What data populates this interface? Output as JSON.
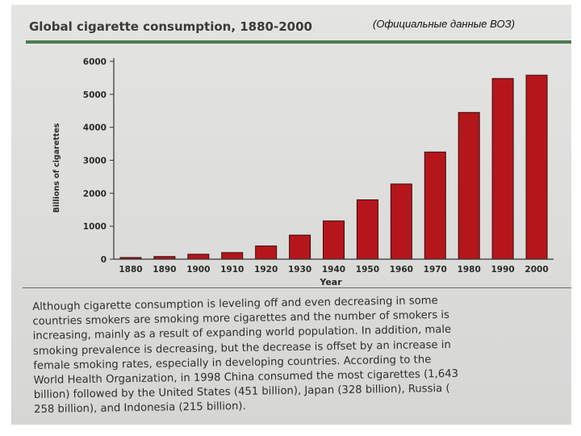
{
  "source_note": "(Официальные данные ВОЗ)",
  "colors": {
    "bar_fill": "#b5161b",
    "bar_stroke": "#3a0a0a",
    "title_rule": "#4d7a52"
  },
  "chart_data": {
    "type": "bar",
    "title": "Global cigarette consumption, 1880-2000",
    "xlabel": "Year",
    "ylabel": "Billions of cigarettes",
    "categories": [
      "1880",
      "1890",
      "1900",
      "1910",
      "1920",
      "1930",
      "1940",
      "1950",
      "1960",
      "1970",
      "1980",
      "1990",
      "2000"
    ],
    "values": [
      50,
      80,
      150,
      200,
      400,
      730,
      1160,
      1800,
      2280,
      3250,
      4450,
      5480,
      5580
    ],
    "ylim": [
      0,
      6000
    ],
    "yticks": [
      0,
      1000,
      2000,
      3000,
      4000,
      5000,
      6000
    ],
    "yticklabels": [
      "0",
      "1000",
      "2000",
      "3000",
      "4000",
      "5000",
      "6000"
    ],
    "grid": false,
    "legend": "none"
  },
  "paragraph": {
    "lines": [
      "Although cigarette consumption is leveling off and even decreasing in some",
      "countries smokers are smoking more cigarettes and the number of smokers is",
      "increasing, mainly as a result of expanding world population. In addition, male",
      "smoking prevalence is decreasing, but the decrease is offset by an increase in",
      "female smoking rates, especially in developing countries. According to the",
      "World Health Organization, in 1998 China consumed the most cigarettes (1,643",
      "billion) followed by the United States (451 billion), Japan (328 billion), Russia (",
      "258 billion), and Indonesia (215 billion)."
    ]
  }
}
